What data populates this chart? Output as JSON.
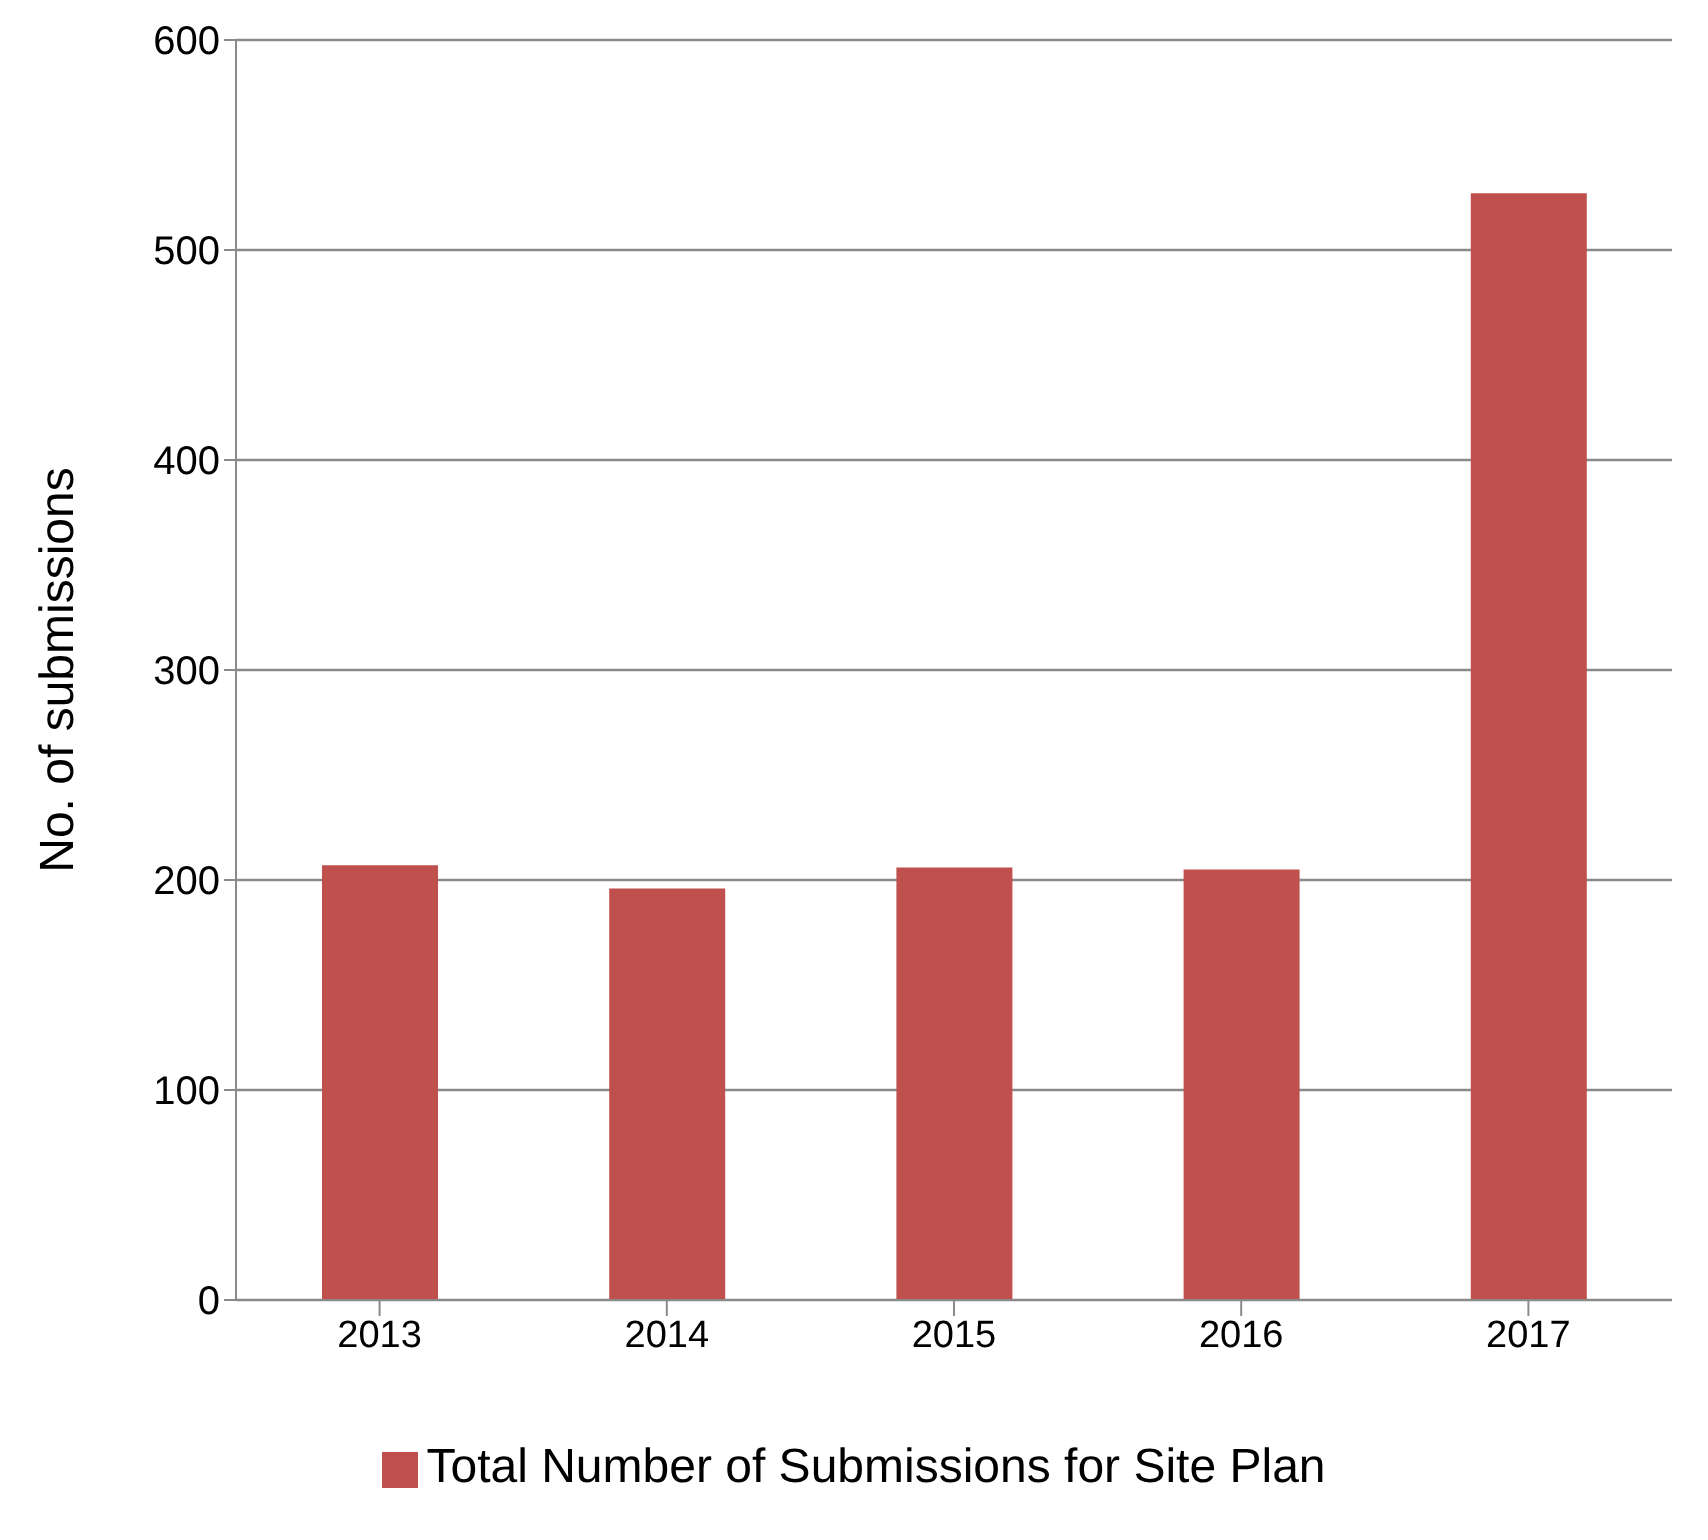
{
  "chart_data": {
    "type": "bar",
    "ylabel": "No. of submissions",
    "categories": [
      "2013",
      "2014",
      "2015",
      "2016",
      "2017"
    ],
    "series": [
      {
        "name": "Total Number of Submissions for Site Plan",
        "color": "#c0504d",
        "values": [
          207,
          196,
          206,
          205,
          527
        ]
      }
    ],
    "ylim": [
      0,
      600
    ],
    "yticks": [
      0,
      100,
      200,
      300,
      400,
      500,
      600
    ],
    "grid": "y",
    "legend": "bottom"
  }
}
